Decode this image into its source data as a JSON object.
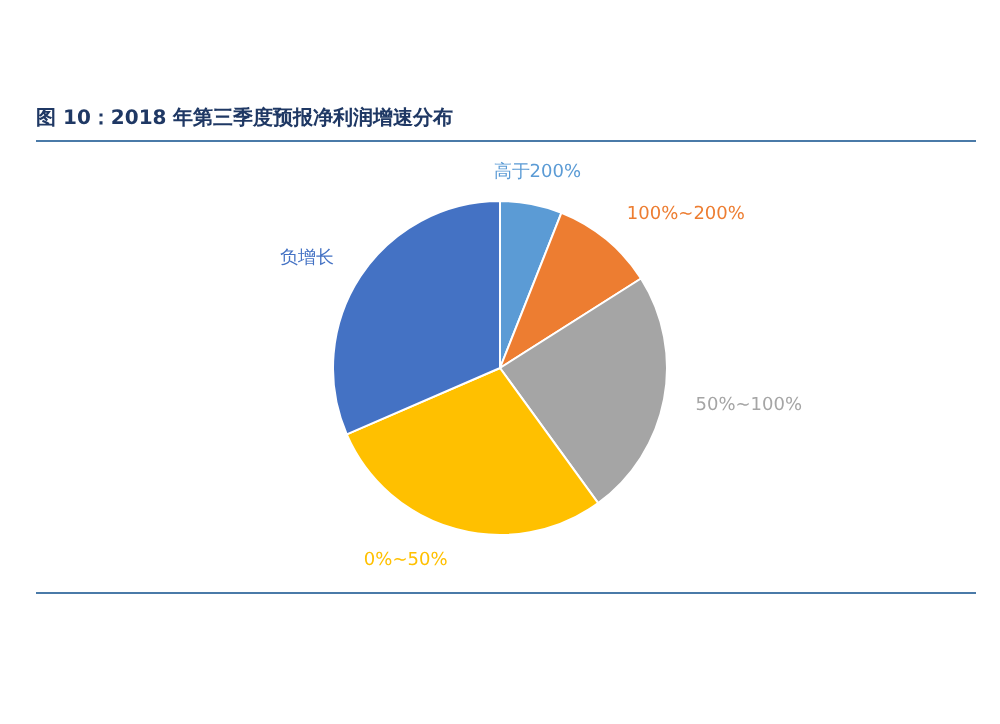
{
  "chart_data": {
    "type": "pie",
    "title": "图 10：2018 年第三季度预报净利润增速分布",
    "categories": [
      "高于200%",
      "100%~200%",
      "50%~100%",
      "0%~50%",
      "负增长"
    ],
    "values": [
      6,
      10,
      24,
      28.5,
      31.5
    ],
    "colors": [
      "#5b9bd5",
      "#ed7d31",
      "#a5a5a5",
      "#ffc000",
      "#4472c4"
    ],
    "legend": false
  }
}
